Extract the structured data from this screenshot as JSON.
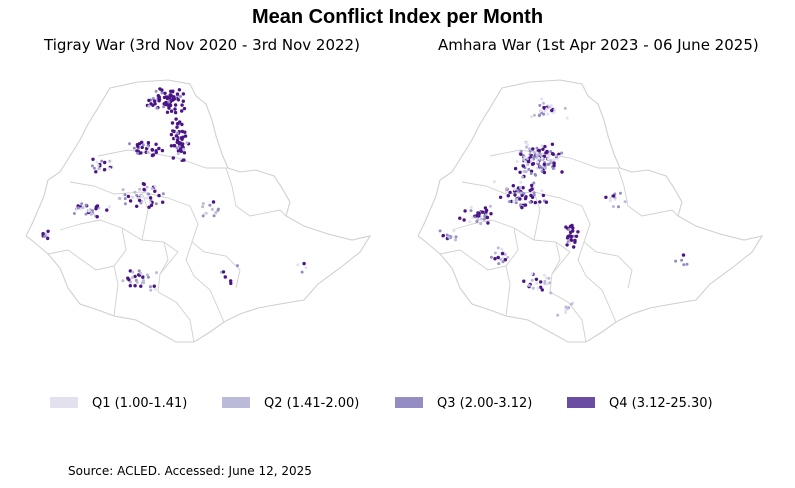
{
  "title": "Mean Conflict Index per Month",
  "panels": [
    {
      "subtitle": "Tigray War (3rd Nov 2020 - 3rd Nov 2022)"
    },
    {
      "subtitle": "Amhara War (1st Apr 2023 - 06 June 2025)"
    }
  ],
  "legend": [
    {
      "label": "Q1 (1.00-1.41)",
      "color": "#e3e1ef"
    },
    {
      "label": "Q2 (1.41-2.00)",
      "color": "#bcbad9"
    },
    {
      "label": "Q3 (2.00-3.12)",
      "color": "#938dc3"
    },
    {
      "label": "Q4 (3.12-25.30)",
      "color": "#6a4ca2"
    }
  ],
  "colors": {
    "point_q4": "#4a1486",
    "border": "#d0d0d0"
  },
  "source": "Source: ACLED. Accessed: June 12, 2025"
}
